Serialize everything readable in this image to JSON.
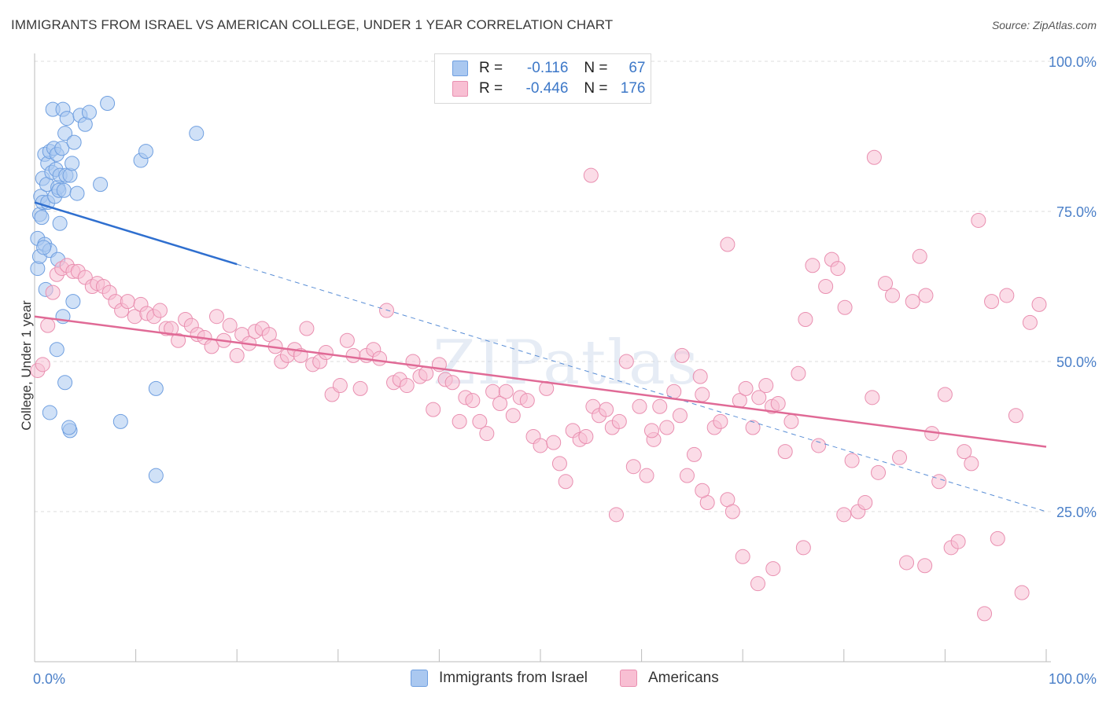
{
  "title": "IMMIGRANTS FROM ISRAEL VS AMERICAN COLLEGE, UNDER 1 YEAR CORRELATION CHART",
  "source": "Source: ZipAtlas.com",
  "watermark": "ZIPatlas",
  "legend_stats": [
    {
      "r_label": "R =",
      "r": "-0.116",
      "n_label": "N =",
      "n": "67",
      "color": "#aac8f0",
      "border": "#6f9fe0"
    },
    {
      "r_label": "R =",
      "r": "-0.446",
      "n_label": "N =",
      "n": "176",
      "color": "#f8bfd3",
      "border": "#e98fb0"
    }
  ],
  "chart_data": {
    "type": "scatter",
    "title": "IMMIGRANTS FROM ISRAEL VS AMERICAN COLLEGE, UNDER 1 YEAR CORRELATION CHART",
    "xlabel": "",
    "ylabel": "College, Under 1 year",
    "xlim": [
      0,
      100
    ],
    "ylim": [
      0,
      100
    ],
    "x_tick_labels": [
      "0.0%",
      "100.0%"
    ],
    "y_tick_labels": [
      "25.0%",
      "50.0%",
      "75.0%",
      "100.0%"
    ],
    "y_ticks": [
      25,
      50,
      75,
      100
    ],
    "grid": true,
    "legend_position": "bottom",
    "series": [
      {
        "name": "Immigrants from Israel",
        "color": "#6f9fe0",
        "fill": "#aac8f0",
        "trend": {
          "x0": 0,
          "y0": 76.5,
          "x1": 20,
          "y1": 66.2,
          "dash_to_x": 100,
          "dash_to_y": 25.0
        },
        "points": [
          [
            0.3,
            65.5
          ],
          [
            0.3,
            70.5
          ],
          [
            0.5,
            67.5
          ],
          [
            0.5,
            74.5
          ],
          [
            0.6,
            77.5
          ],
          [
            0.7,
            74.0
          ],
          [
            0.8,
            76.5
          ],
          [
            0.8,
            80.5
          ],
          [
            1.0,
            84.5
          ],
          [
            1.0,
            69.5
          ],
          [
            1.1,
            62.0
          ],
          [
            1.2,
            79.5
          ],
          [
            1.3,
            76.5
          ],
          [
            1.3,
            83.0
          ],
          [
            1.5,
            85.0
          ],
          [
            1.5,
            68.5
          ],
          [
            1.7,
            81.5
          ],
          [
            1.8,
            92.0
          ],
          [
            1.9,
            85.5
          ],
          [
            2.0,
            77.5
          ],
          [
            2.1,
            82.0
          ],
          [
            2.2,
            84.5
          ],
          [
            2.3,
            79.0
          ],
          [
            2.4,
            78.5
          ],
          [
            2.5,
            81.0
          ],
          [
            2.7,
            85.5
          ],
          [
            2.8,
            92.0
          ],
          [
            2.9,
            78.5
          ],
          [
            3.0,
            88.0
          ],
          [
            3.1,
            81.0
          ],
          [
            3.2,
            90.5
          ],
          [
            3.5,
            81.0
          ],
          [
            3.7,
            83.0
          ],
          [
            3.9,
            86.5
          ],
          [
            4.2,
            78.0
          ],
          [
            4.5,
            91.0
          ],
          [
            5.0,
            89.5
          ],
          [
            5.4,
            91.5
          ],
          [
            6.5,
            79.5
          ],
          [
            7.2,
            93.0
          ],
          [
            10.5,
            83.5
          ],
          [
            11.0,
            85.0
          ],
          [
            16.0,
            88.0
          ],
          [
            2.3,
            67.0
          ],
          [
            2.5,
            73.0
          ],
          [
            0.9,
            69.0
          ],
          [
            3.8,
            60.0
          ],
          [
            2.8,
            57.5
          ],
          [
            3.0,
            46.5
          ],
          [
            1.5,
            41.5
          ],
          [
            3.5,
            38.5
          ],
          [
            3.4,
            39.0
          ],
          [
            8.5,
            40.0
          ],
          [
            12.0,
            45.5
          ],
          [
            12.0,
            31.0
          ],
          [
            2.2,
            52.0
          ]
        ]
      },
      {
        "name": "Americans",
        "color": "#e98fb0",
        "fill": "#f8bfd3",
        "trend": {
          "x0": 0,
          "y0": 57.5,
          "x1": 100,
          "y1": 35.8
        },
        "points": [
          [
            0.3,
            48.5
          ],
          [
            0.8,
            49.5
          ],
          [
            1.3,
            56.0
          ],
          [
            1.8,
            61.5
          ],
          [
            2.2,
            64.5
          ],
          [
            2.7,
            65.5
          ],
          [
            3.2,
            66.0
          ],
          [
            3.8,
            65.0
          ],
          [
            4.3,
            65.0
          ],
          [
            5.0,
            64.0
          ],
          [
            5.7,
            62.5
          ],
          [
            6.2,
            63.0
          ],
          [
            6.8,
            62.5
          ],
          [
            7.4,
            61.5
          ],
          [
            8.0,
            60.0
          ],
          [
            8.6,
            58.5
          ],
          [
            9.2,
            60.0
          ],
          [
            9.9,
            57.5
          ],
          [
            10.5,
            59.5
          ],
          [
            11.1,
            58.0
          ],
          [
            11.8,
            57.5
          ],
          [
            12.4,
            58.5
          ],
          [
            13.0,
            55.5
          ],
          [
            13.5,
            55.5
          ],
          [
            14.2,
            53.5
          ],
          [
            14.9,
            57.0
          ],
          [
            15.5,
            56.0
          ],
          [
            16.1,
            54.5
          ],
          [
            16.8,
            54.0
          ],
          [
            17.5,
            52.5
          ],
          [
            18.0,
            57.5
          ],
          [
            18.7,
            53.5
          ],
          [
            19.3,
            56.0
          ],
          [
            20.0,
            51.0
          ],
          [
            20.5,
            54.5
          ],
          [
            21.2,
            53.0
          ],
          [
            21.8,
            55.0
          ],
          [
            22.5,
            55.5
          ],
          [
            23.2,
            54.5
          ],
          [
            23.8,
            52.5
          ],
          [
            24.4,
            50.0
          ],
          [
            25.0,
            51.0
          ],
          [
            25.7,
            52.0
          ],
          [
            26.3,
            51.0
          ],
          [
            26.9,
            55.5
          ],
          [
            27.5,
            49.5
          ],
          [
            28.2,
            50.0
          ],
          [
            28.8,
            51.5
          ],
          [
            29.4,
            44.5
          ],
          [
            30.2,
            46.0
          ],
          [
            30.9,
            53.5
          ],
          [
            31.5,
            51.0
          ],
          [
            32.2,
            45.5
          ],
          [
            32.8,
            51.0
          ],
          [
            33.5,
            52.0
          ],
          [
            34.1,
            50.5
          ],
          [
            34.8,
            58.5
          ],
          [
            35.5,
            46.5
          ],
          [
            36.1,
            47.0
          ],
          [
            36.8,
            46.0
          ],
          [
            37.4,
            50.0
          ],
          [
            38.1,
            47.5
          ],
          [
            38.7,
            48.0
          ],
          [
            39.4,
            42.0
          ],
          [
            40.0,
            49.5
          ],
          [
            40.6,
            47.0
          ],
          [
            41.3,
            46.5
          ],
          [
            42.0,
            40.0
          ],
          [
            42.6,
            44.0
          ],
          [
            43.3,
            43.5
          ],
          [
            44.0,
            40.0
          ],
          [
            44.7,
            38.0
          ],
          [
            45.3,
            45.0
          ],
          [
            46.0,
            43.0
          ],
          [
            46.6,
            45.0
          ],
          [
            47.3,
            41.0
          ],
          [
            48.0,
            44.0
          ],
          [
            48.7,
            43.5
          ],
          [
            49.3,
            37.5
          ],
          [
            50.0,
            36.0
          ],
          [
            50.6,
            45.5
          ],
          [
            51.3,
            36.5
          ],
          [
            51.9,
            33.0
          ],
          [
            52.5,
            30.0
          ],
          [
            53.2,
            38.5
          ],
          [
            53.9,
            37.0
          ],
          [
            54.5,
            37.5
          ],
          [
            55.2,
            42.5
          ],
          [
            55.8,
            41.0
          ],
          [
            56.5,
            42.0
          ],
          [
            57.1,
            39.0
          ],
          [
            57.8,
            40.0
          ],
          [
            58.5,
            50.0
          ],
          [
            59.2,
            32.5
          ],
          [
            59.8,
            42.5
          ],
          [
            60.5,
            31.0
          ],
          [
            61.2,
            37.0
          ],
          [
            61.8,
            42.5
          ],
          [
            62.5,
            39.0
          ],
          [
            63.2,
            45.0
          ],
          [
            63.8,
            41.0
          ],
          [
            64.5,
            31.0
          ],
          [
            65.2,
            34.5
          ],
          [
            65.8,
            47.5
          ],
          [
            66.5,
            26.5
          ],
          [
            67.2,
            39.0
          ],
          [
            67.8,
            40.0
          ],
          [
            68.5,
            27.0
          ],
          [
            69.0,
            25.0
          ],
          [
            69.7,
            43.5
          ],
          [
            70.3,
            45.5
          ],
          [
            71.0,
            39.0
          ],
          [
            71.6,
            44.0
          ],
          [
            72.3,
            46.0
          ],
          [
            72.9,
            42.5
          ],
          [
            73.5,
            43.0
          ],
          [
            74.2,
            35.0
          ],
          [
            74.8,
            40.0
          ],
          [
            75.5,
            48.0
          ],
          [
            76.2,
            57.0
          ],
          [
            76.9,
            66.0
          ],
          [
            77.5,
            36.0
          ],
          [
            78.2,
            62.5
          ],
          [
            78.8,
            67.0
          ],
          [
            79.4,
            65.5
          ],
          [
            80.1,
            59.0
          ],
          [
            80.8,
            33.5
          ],
          [
            81.4,
            25.0
          ],
          [
            82.1,
            26.5
          ],
          [
            82.8,
            44.0
          ],
          [
            83.4,
            31.5
          ],
          [
            84.1,
            63.0
          ],
          [
            84.8,
            61.0
          ],
          [
            85.5,
            34.0
          ],
          [
            86.2,
            16.5
          ],
          [
            86.8,
            60.0
          ],
          [
            87.5,
            67.5
          ],
          [
            88.1,
            61.0
          ],
          [
            88.7,
            38.0
          ],
          [
            89.4,
            30.0
          ],
          [
            90.0,
            44.5
          ],
          [
            90.6,
            19.0
          ],
          [
            91.3,
            20.0
          ],
          [
            91.9,
            35.0
          ],
          [
            92.6,
            33.0
          ],
          [
            93.3,
            73.5
          ],
          [
            93.9,
            8.0
          ],
          [
            94.6,
            60.0
          ],
          [
            95.2,
            20.5
          ],
          [
            96.1,
            61.0
          ],
          [
            97.0,
            41.0
          ],
          [
            97.6,
            11.5
          ],
          [
            98.4,
            56.5
          ],
          [
            99.3,
            59.5
          ],
          [
            55.0,
            81.0
          ],
          [
            83.0,
            84.0
          ],
          [
            68.5,
            69.5
          ],
          [
            70.0,
            17.5
          ],
          [
            71.5,
            13.0
          ],
          [
            73.0,
            15.5
          ],
          [
            76.0,
            19.0
          ],
          [
            80.0,
            24.5
          ],
          [
            88.0,
            16.0
          ],
          [
            57.5,
            24.5
          ],
          [
            64.0,
            51.0
          ],
          [
            61.0,
            38.5
          ],
          [
            66.0,
            44.5
          ],
          [
            66.0,
            28.5
          ]
        ]
      }
    ]
  },
  "legend_bottom": [
    {
      "label": "Immigrants from Israel",
      "color": "#aac8f0",
      "border": "#6f9fe0"
    },
    {
      "label": "Americans",
      "color": "#f8bfd3",
      "border": "#e98fb0"
    }
  ]
}
